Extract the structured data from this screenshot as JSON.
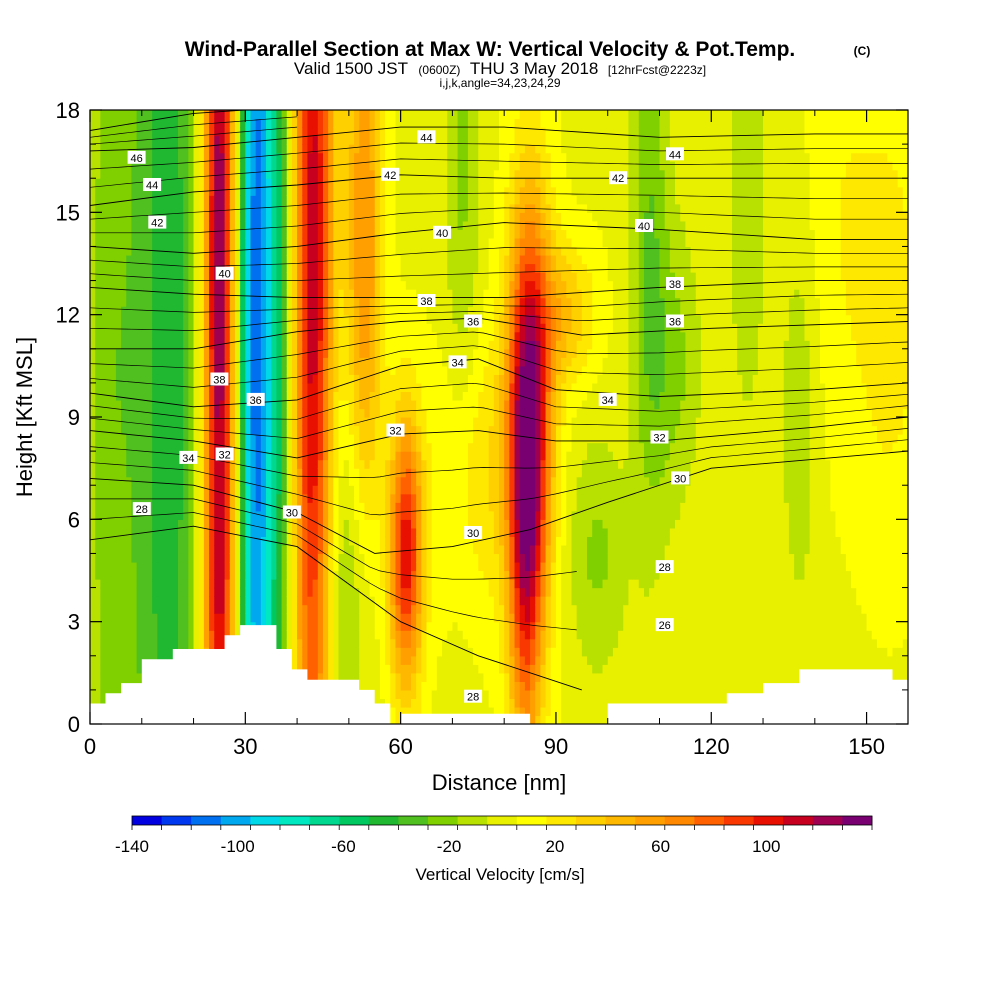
{
  "title": "Wind-Parallel Section at Max W: Vertical Velocity & Pot.Temp.",
  "title_mark": "(C)",
  "subtitle_main": "Valid 1500 JST",
  "subtitle_small": "(0600Z)",
  "subtitle_date": "THU 3 May 2018",
  "subtitle_fcst": "[12hrFcst@2223z]",
  "subtitle_indices": "i,j,k,angle=34,23,24,29",
  "chart_data": {
    "type": "heatmap",
    "title": "Wind-Parallel Section at Max W: Vertical Velocity & Pot.Temp.",
    "xlabel": "Distance [nm]",
    "ylabel": "Height [Kft MSL]",
    "xlim": [
      0,
      158
    ],
    "ylim": [
      0,
      18
    ],
    "x_ticks": [
      0,
      30,
      60,
      90,
      120,
      150
    ],
    "y_ticks": [
      0,
      3,
      6,
      9,
      12,
      15,
      18
    ],
    "colorbar": {
      "label": "Vertical Velocity [cm/s]",
      "range": [
        -140,
        140
      ],
      "tick_labels": [
        "-140",
        "-100",
        "-60",
        "-20",
        "20",
        "60",
        "100"
      ],
      "tick_values": [
        -140,
        -100,
        -60,
        -20,
        20,
        60,
        100
      ],
      "colors": [
        "#0000e0",
        "#0038f0",
        "#0070f0",
        "#00a8f0",
        "#00d8e8",
        "#00e8c0",
        "#00d890",
        "#00c860",
        "#20b830",
        "#50c020",
        "#80d000",
        "#b8e000",
        "#e8f000",
        "#ffff00",
        "#ffe800",
        "#ffd000",
        "#ffb800",
        "#ffa000",
        "#ff8800",
        "#ff6000",
        "#f83800",
        "#e81000",
        "#c80020",
        "#a00050",
        "#780070"
      ]
    },
    "w_features": [
      {
        "x": 25,
        "z": 13,
        "sx": 2.3,
        "sz": 20,
        "amp": 130
      },
      {
        "x": 32,
        "z": 12,
        "sx": 2.6,
        "sz": 18,
        "amp": -115
      },
      {
        "x": 43,
        "z": 13,
        "sx": 2.8,
        "sz": 14,
        "amp": 110
      },
      {
        "x": 37,
        "z": 12,
        "sx": 2.0,
        "sz": 12,
        "amp": -40
      },
      {
        "x": 15,
        "z": 11,
        "sx": 5,
        "sz": 20,
        "amp": -50
      },
      {
        "x": 4,
        "z": 10,
        "sx": 3.5,
        "sz": 20,
        "amp": -25
      },
      {
        "x": 53,
        "z": 14,
        "sx": 2.5,
        "sz": 7,
        "amp": 60
      },
      {
        "x": 61,
        "z": 5,
        "sx": 2.3,
        "sz": 2.8,
        "amp": 100
      },
      {
        "x": 50,
        "z": 4,
        "sx": 4,
        "sz": 4,
        "amp": -30
      },
      {
        "x": 85,
        "z": 9,
        "sx": 3.0,
        "sz": 4.5,
        "amp": 115
      },
      {
        "x": 84,
        "z": 4,
        "sx": 2.2,
        "sz": 5,
        "amp": 55
      },
      {
        "x": 92,
        "z": 12,
        "sx": 4,
        "sz": 1.5,
        "amp": 35
      },
      {
        "x": 75,
        "z": 7.5,
        "sx": 6,
        "sz": 3,
        "amp": 25
      },
      {
        "x": 72,
        "z": 16,
        "sx": 2.5,
        "sz": 7,
        "amp": -22
      },
      {
        "x": 108,
        "z": 14,
        "sx": 2.5,
        "sz": 6,
        "amp": -30
      },
      {
        "x": 113,
        "z": 10.5,
        "sx": 3.5,
        "sz": 3,
        "amp": -22
      },
      {
        "x": 98,
        "z": 5,
        "sx": 4,
        "sz": 2.5,
        "amp": -22
      },
      {
        "x": 127,
        "z": 16,
        "sx": 2.5,
        "sz": 5,
        "amp": -20
      },
      {
        "x": 137,
        "z": 9,
        "sx": 2.5,
        "sz": 4,
        "amp": -18
      },
      {
        "x": 155,
        "z": 12,
        "sx": 5,
        "sz": 5,
        "amp": 18
      },
      {
        "x": 145,
        "z": 15,
        "sx": 5,
        "sz": 5,
        "amp": 12
      }
    ],
    "theta_contours": [
      {
        "label": "28",
        "points": [
          [
            0,
            5.4
          ],
          [
            20,
            5.8
          ],
          [
            40,
            5.2
          ],
          [
            60,
            3.0
          ],
          [
            75,
            2.0
          ],
          [
            85,
            1.5
          ],
          [
            95,
            1.0
          ]
        ]
      },
      {
        "label": "30",
        "points": [
          [
            0,
            7.2
          ],
          [
            20,
            7.0
          ],
          [
            40,
            6.2
          ],
          [
            55,
            5.0
          ],
          [
            70,
            5.2
          ],
          [
            85,
            5.7
          ],
          [
            100,
            6.5
          ],
          [
            120,
            7.5
          ],
          [
            158,
            8.0
          ]
        ]
      },
      {
        "label": "32",
        "points": [
          [
            0,
            8.6
          ],
          [
            20,
            8.3
          ],
          [
            40,
            7.8
          ],
          [
            60,
            8.5
          ],
          [
            75,
            8.6
          ],
          [
            90,
            8.3
          ],
          [
            110,
            8.3
          ],
          [
            140,
            8.7
          ],
          [
            158,
            9.0
          ]
        ]
      },
      {
        "label": "34",
        "points": [
          [
            0,
            9.7
          ],
          [
            20,
            9.3
          ],
          [
            40,
            9.5
          ],
          [
            60,
            10.5
          ],
          [
            75,
            10.7
          ],
          [
            90,
            9.8
          ],
          [
            110,
            9.6
          ],
          [
            140,
            9.8
          ],
          [
            158,
            10.0
          ]
        ]
      },
      {
        "label": "36",
        "points": [
          [
            0,
            11.0
          ],
          [
            20,
            11.0
          ],
          [
            40,
            11.5
          ],
          [
            60,
            11.8
          ],
          [
            75,
            11.9
          ],
          [
            95,
            11.4
          ],
          [
            120,
            11.6
          ],
          [
            158,
            11.8
          ]
        ]
      },
      {
        "label": "38",
        "points": [
          [
            0,
            12.8
          ],
          [
            20,
            12.6
          ],
          [
            40,
            12.5
          ],
          [
            60,
            12.5
          ],
          [
            80,
            12.5
          ],
          [
            110,
            12.8
          ],
          [
            140,
            13.0
          ],
          [
            158,
            13.0
          ]
        ]
      },
      {
        "label": "40",
        "points": [
          [
            0,
            14.0
          ],
          [
            20,
            13.8
          ],
          [
            40,
            14.0
          ],
          [
            60,
            14.4
          ],
          [
            80,
            14.7
          ],
          [
            110,
            14.5
          ],
          [
            140,
            14.2
          ],
          [
            158,
            14.2
          ]
        ]
      },
      {
        "label": "42",
        "points": [
          [
            0,
            15.2
          ],
          [
            20,
            15.6
          ],
          [
            40,
            15.8
          ],
          [
            60,
            16.1
          ],
          [
            80,
            16.0
          ],
          [
            110,
            16.0
          ],
          [
            140,
            16.0
          ],
          [
            158,
            16.0
          ]
        ]
      },
      {
        "label": "44",
        "points": [
          [
            0,
            16.8
          ],
          [
            20,
            16.9
          ],
          [
            40,
            17.2
          ],
          [
            60,
            17.5
          ],
          [
            80,
            17.5
          ],
          [
            110,
            17.2
          ],
          [
            140,
            17.3
          ],
          [
            158,
            17.3
          ]
        ]
      },
      {
        "label": "46",
        "points": [
          [
            0,
            17.4
          ],
          [
            20,
            17.9
          ],
          [
            40,
            18.1
          ]
        ]
      }
    ],
    "contour_labels": [
      {
        "text": "46",
        "x": 9,
        "z": 16.6
      },
      {
        "text": "44",
        "x": 12,
        "z": 15.8
      },
      {
        "text": "42",
        "x": 13,
        "z": 14.7
      },
      {
        "text": "44",
        "x": 65,
        "z": 17.2
      },
      {
        "text": "42",
        "x": 58,
        "z": 16.1
      },
      {
        "text": "40",
        "x": 68,
        "z": 14.4
      },
      {
        "text": "38",
        "x": 65,
        "z": 12.4
      },
      {
        "text": "36",
        "x": 74,
        "z": 11.8
      },
      {
        "text": "34",
        "x": 71,
        "z": 10.6
      },
      {
        "text": "40",
        "x": 26,
        "z": 13.2
      },
      {
        "text": "38",
        "x": 25,
        "z": 10.1
      },
      {
        "text": "36",
        "x": 32,
        "z": 9.5
      },
      {
        "text": "34",
        "x": 19,
        "z": 7.8
      },
      {
        "text": "32",
        "x": 26,
        "z": 7.9
      },
      {
        "text": "30",
        "x": 39,
        "z": 6.2
      },
      {
        "text": "28",
        "x": 10,
        "z": 6.3
      },
      {
        "text": "32",
        "x": 59,
        "z": 8.6
      },
      {
        "text": "30",
        "x": 74,
        "z": 5.6
      },
      {
        "text": "28",
        "x": 74,
        "z": 0.8
      },
      {
        "text": "44",
        "x": 113,
        "z": 16.7
      },
      {
        "text": "42",
        "x": 102,
        "z": 16.0
      },
      {
        "text": "40",
        "x": 107,
        "z": 14.6
      },
      {
        "text": "38",
        "x": 113,
        "z": 12.9
      },
      {
        "text": "36",
        "x": 113,
        "z": 11.8
      },
      {
        "text": "34",
        "x": 100,
        "z": 9.5
      },
      {
        "text": "32",
        "x": 110,
        "z": 8.4
      },
      {
        "text": "30",
        "x": 114,
        "z": 7.2
      },
      {
        "text": "28",
        "x": 111,
        "z": 4.6
      },
      {
        "text": "26",
        "x": 111,
        "z": 2.9
      }
    ],
    "terrain": [
      [
        0,
        0.6
      ],
      [
        3,
        0.6
      ],
      [
        3,
        0.9
      ],
      [
        6,
        0.9
      ],
      [
        6,
        1.2
      ],
      [
        10,
        1.2
      ],
      [
        10,
        1.9
      ],
      [
        16,
        1.9
      ],
      [
        16,
        2.2
      ],
      [
        26,
        2.2
      ],
      [
        26,
        2.6
      ],
      [
        29,
        2.6
      ],
      [
        29,
        2.9
      ],
      [
        36,
        2.9
      ],
      [
        36,
        2.2
      ],
      [
        39,
        2.2
      ],
      [
        39,
        1.6
      ],
      [
        42,
        1.6
      ],
      [
        42,
        1.3
      ],
      [
        52,
        1.3
      ],
      [
        52,
        1.0
      ],
      [
        55,
        1.0
      ],
      [
        55,
        0.6
      ],
      [
        58,
        0.6
      ],
      [
        58,
        0.0
      ],
      [
        60,
        0.0
      ],
      [
        60,
        0.3
      ],
      [
        85,
        0.3
      ],
      [
        85,
        0.0
      ],
      [
        100,
        0.0
      ],
      [
        100,
        0.6
      ],
      [
        123,
        0.6
      ],
      [
        123,
        0.9
      ],
      [
        130,
        0.9
      ],
      [
        130,
        1.2
      ],
      [
        137,
        1.2
      ],
      [
        137,
        1.6
      ],
      [
        146,
        1.6
      ],
      [
        146,
        1.6
      ],
      [
        155,
        1.6
      ],
      [
        155,
        1.3
      ],
      [
        158,
        1.3
      ]
    ]
  }
}
